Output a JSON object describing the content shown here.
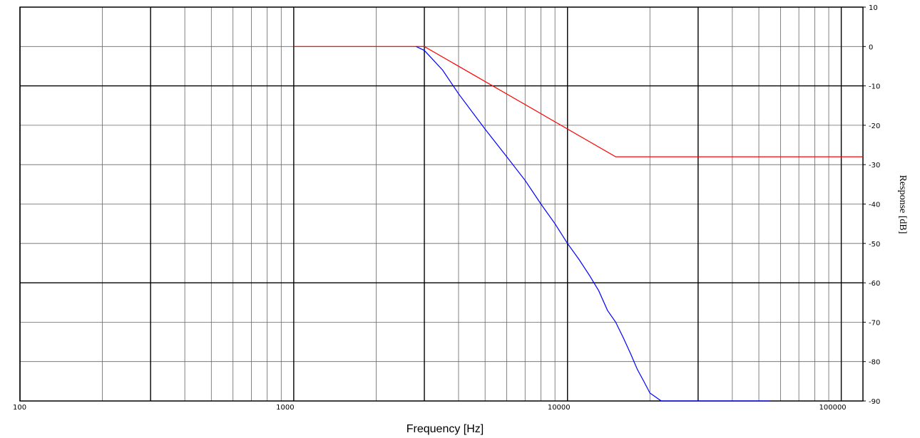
{
  "chart_data": {
    "type": "line",
    "xlabel": "Frequency [Hz]",
    "ylabel": "Response [dB]",
    "x_scale": "log",
    "xlim": [
      100,
      120000
    ],
    "ylim": [
      -90,
      10
    ],
    "x_tick_labels": [
      "100",
      "1000",
      "10000",
      "100000"
    ],
    "y_tick_labels": [
      "10",
      "0",
      "-10",
      "-20",
      "-30",
      "-40",
      "-50",
      "-60",
      "-70",
      "-80",
      "-90"
    ],
    "y_ticks": [
      10,
      0,
      -10,
      -20,
      -30,
      -40,
      -50,
      -60,
      -70,
      -80,
      -90
    ],
    "x_ticks": [
      100,
      1000,
      10000,
      100000
    ],
    "grid": true,
    "series": [
      {
        "color": "#ff0000",
        "points": [
          [
            1000,
            0
          ],
          [
            3000,
            0
          ],
          [
            15000,
            -28
          ],
          [
            120000,
            -28
          ]
        ]
      },
      {
        "color": "#0000ff",
        "points": [
          [
            2800,
            0
          ],
          [
            3000,
            -1
          ],
          [
            3500,
            -6
          ],
          [
            4000,
            -12
          ],
          [
            5000,
            -21
          ],
          [
            6000,
            -28
          ],
          [
            7000,
            -34
          ],
          [
            8000,
            -40
          ],
          [
            9000,
            -45
          ],
          [
            10000,
            -50
          ],
          [
            11000,
            -54
          ],
          [
            12000,
            -58
          ],
          [
            13000,
            -62
          ],
          [
            14000,
            -67
          ],
          [
            15000,
            -70
          ],
          [
            16000,
            -74
          ],
          [
            17000,
            -78
          ],
          [
            18000,
            -82
          ],
          [
            19000,
            -85
          ],
          [
            20000,
            -88
          ],
          [
            21000,
            -89
          ],
          [
            22000,
            -90
          ],
          [
            55000,
            -90
          ]
        ]
      }
    ]
  }
}
